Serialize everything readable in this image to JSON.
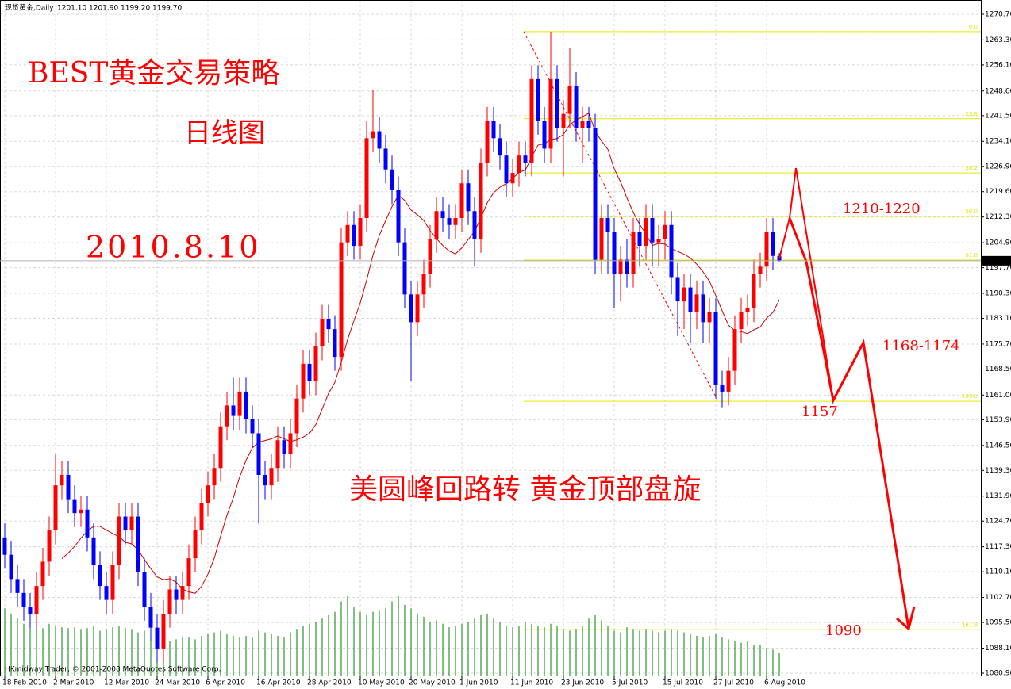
{
  "chart_data": {
    "type": "candlestick",
    "header": {
      "symbol": "现货黄金,Daily",
      "quote": [
        "1201.10",
        "1201.90",
        "1199.20",
        "1199.70"
      ]
    },
    "footer": "HKmidway Trader, © 2001-2008 MetaQuotes Software Corp.",
    "price_label": "1199.70",
    "annotations": [
      "BEST黄金交易策略",
      "日线图",
      "2010.8.10",
      "美圆峰回路转  黄金顶部盘旋",
      "1210-1220",
      "1168-1174",
      "1157",
      "1090"
    ],
    "categories": [
      "18 Feb 2010",
      null,
      null,
      null,
      null,
      null,
      null,
      null,
      "2 Mar 2010",
      null,
      null,
      null,
      null,
      null,
      null,
      null,
      "12 Mar 2010",
      null,
      null,
      null,
      null,
      null,
      null,
      null,
      "24 Mar 2010",
      null,
      null,
      null,
      null,
      null,
      null,
      null,
      "6 Apr 2010",
      null,
      null,
      null,
      null,
      null,
      null,
      null,
      "16 Apr 2010",
      null,
      null,
      null,
      null,
      null,
      null,
      null,
      "28 Apr 2010",
      null,
      null,
      null,
      null,
      null,
      null,
      null,
      "10 May 2010",
      null,
      null,
      null,
      null,
      null,
      null,
      null,
      "20 May 2010",
      null,
      null,
      null,
      null,
      null,
      null,
      null,
      "1 Jun 2010",
      null,
      null,
      null,
      null,
      null,
      null,
      null,
      "11 Jun 2010",
      null,
      null,
      null,
      null,
      null,
      null,
      null,
      "23 Jun 2010",
      null,
      null,
      null,
      null,
      null,
      null,
      null,
      "5 Jul 2010",
      null,
      null,
      null,
      null,
      null,
      null,
      null,
      "15 Jul 2010",
      null,
      null,
      null,
      null,
      null,
      null,
      null,
      "27 Jul 2010",
      null,
      null,
      null,
      null,
      null,
      null,
      null,
      "6 Aug 2010",
      null,
      null
    ],
    "open": [
      1120,
      1115,
      1108,
      1104,
      1100,
      1098,
      1106,
      1113,
      1122,
      1135,
      1138,
      1131,
      1127,
      1128,
      1120,
      1112,
      1106,
      1102,
      1112,
      1126,
      1122,
      1126,
      1110,
      1100,
      1094,
      1088,
      1098,
      1105,
      1102,
      1106,
      1114,
      1122,
      1130,
      1135,
      1140,
      1152,
      1158,
      1155,
      1162,
      1154,
      1150,
      1138,
      1135,
      1140,
      1148,
      1144,
      1150,
      1160,
      1170,
      1165,
      1175,
      1183,
      1180,
      1172,
      1205,
      1210,
      1204,
      1212,
      1235,
      1237,
      1232,
      1226,
      1220,
      1205,
      1190,
      1182,
      1190,
      1196,
      1206,
      1214,
      1212,
      1210,
      1212,
      1222,
      1214,
      1206,
      1228,
      1240,
      1235,
      1230,
      1222,
      1225,
      1230,
      1228,
      1252,
      1240,
      1232,
      1252,
      1238,
      1242,
      1250,
      1238,
      1240,
      1238,
      1200,
      1212,
      1208,
      1196,
      1200,
      1196,
      1208,
      1204,
      1212,
      1205,
      1206,
      1210,
      1195,
      1188,
      1192,
      1185,
      1190,
      1182,
      1185,
      1164,
      1162,
      1168,
      1180,
      1185,
      1186,
      1196,
      1198,
      1208,
      1201.1
    ],
    "high": [
      1124,
      1119,
      1112,
      1108,
      1104,
      1110,
      1117,
      1126,
      1144,
      1142,
      1142,
      1135,
      1132,
      1132,
      1124,
      1116,
      1110,
      1116,
      1130,
      1130,
      1130,
      1130,
      1114,
      1104,
      1098,
      1102,
      1109,
      1109,
      1110,
      1118,
      1126,
      1134,
      1139,
      1144,
      1156,
      1162,
      1166,
      1166,
      1166,
      1158,
      1154,
      1142,
      1144,
      1152,
      1152,
      1154,
      1164,
      1174,
      1174,
      1179,
      1187,
      1187,
      1184,
      1209,
      1214,
      1214,
      1216,
      1240,
      1249,
      1241,
      1236,
      1230,
      1224,
      1209,
      1194,
      1194,
      1200,
      1210,
      1218,
      1218,
      1216,
      1216,
      1226,
      1226,
      1218,
      1232,
      1244,
      1244,
      1239,
      1234,
      1229,
      1234,
      1234,
      1256,
      1256,
      1244,
      1265.7,
      1256,
      1246,
      1261,
      1254,
      1244,
      1244,
      1242,
      1216,
      1216,
      1212,
      1204,
      1206,
      1212,
      1212,
      1216,
      1216,
      1210,
      1214,
      1214,
      1199,
      1196,
      1196,
      1194,
      1194,
      1189,
      1189,
      1168,
      1172,
      1184,
      1189,
      1190,
      1200,
      1202,
      1212,
      1212,
      1201.9
    ],
    "low": [
      1111,
      1104,
      1100,
      1096,
      1094,
      1094,
      1102,
      1109,
      1118,
      1131,
      1127,
      1123,
      1123,
      1116,
      1108,
      1102,
      1098,
      1098,
      1108,
      1118,
      1118,
      1106,
      1096,
      1090,
      1084,
      1084,
      1094,
      1098,
      1098,
      1102,
      1110,
      1118,
      1126,
      1131,
      1136,
      1148,
      1151,
      1151,
      1150,
      1146,
      1124,
      1131,
      1131,
      1136,
      1140,
      1140,
      1146,
      1156,
      1161,
      1161,
      1171,
      1176,
      1168,
      1168,
      1201,
      1200,
      1200,
      1208,
      1231,
      1228,
      1222,
      1216,
      1201,
      1186,
      1165,
      1178,
      1186,
      1192,
      1202,
      1208,
      1206,
      1206,
      1208,
      1210,
      1198,
      1202,
      1224,
      1231,
      1226,
      1218,
      1218,
      1221,
      1224,
      1224,
      1236,
      1228,
      1228,
      1234,
      1224,
      1238,
      1234,
      1228,
      1234,
      1196,
      1196,
      1196,
      1186,
      1188,
      1192,
      1192,
      1198,
      1200,
      1198,
      1198,
      1200,
      1190,
      1178,
      1180,
      1176,
      1180,
      1176,
      1176,
      1160,
      1157.5,
      1158,
      1164,
      1176,
      1181,
      1182,
      1192,
      1194,
      1197,
      1199.2
    ],
    "close": [
      1115,
      1108,
      1104,
      1100,
      1098,
      1106,
      1113,
      1122,
      1135,
      1138,
      1131,
      1127,
      1128,
      1120,
      1112,
      1106,
      1102,
      1112,
      1126,
      1122,
      1126,
      1110,
      1100,
      1094,
      1088,
      1098,
      1105,
      1102,
      1106,
      1114,
      1122,
      1130,
      1135,
      1140,
      1152,
      1158,
      1155,
      1162,
      1154,
      1150,
      1138,
      1135,
      1140,
      1148,
      1144,
      1150,
      1160,
      1170,
      1165,
      1175,
      1183,
      1180,
      1172,
      1205,
      1210,
      1204,
      1212,
      1235,
      1237,
      1232,
      1226,
      1220,
      1205,
      1190,
      1182,
      1190,
      1196,
      1206,
      1214,
      1212,
      1210,
      1212,
      1222,
      1214,
      1206,
      1228,
      1240,
      1235,
      1230,
      1222,
      1225,
      1230,
      1228,
      1252,
      1240,
      1232,
      1252,
      1238,
      1242,
      1250,
      1238,
      1240,
      1238,
      1200,
      1212,
      1208,
      1196,
      1200,
      1196,
      1208,
      1204,
      1212,
      1205,
      1206,
      1210,
      1195,
      1188,
      1192,
      1185,
      1190,
      1182,
      1185,
      1164,
      1162,
      1168,
      1180,
      1185,
      1186,
      1196,
      1198,
      1208,
      1201.1,
      1199.7
    ],
    "volume": [
      78,
      72,
      66,
      60,
      64,
      58,
      55,
      60,
      58,
      56,
      55,
      56,
      54,
      55,
      58,
      52,
      54,
      56,
      57,
      55,
      54,
      50,
      52,
      50,
      46,
      44,
      40,
      42,
      44,
      44,
      42,
      46,
      48,
      50,
      52,
      48,
      46,
      44,
      46,
      44,
      52,
      50,
      48,
      46,
      44,
      50,
      54,
      58,
      60,
      62,
      66,
      70,
      74,
      86,
      92,
      80,
      74,
      70,
      74,
      76,
      78,
      86,
      92,
      82,
      78,
      72,
      68,
      62,
      64,
      60,
      56,
      58,
      60,
      62,
      66,
      70,
      72,
      66,
      62,
      58,
      56,
      58,
      62,
      60,
      58,
      56,
      60,
      58,
      54,
      52,
      54,
      58,
      66,
      70,
      64,
      58,
      52,
      50,
      56,
      54,
      52,
      54,
      52,
      50,
      52,
      54,
      52,
      50,
      48,
      46,
      44,
      46,
      48,
      44,
      42,
      40,
      38,
      40,
      36,
      36,
      32,
      30,
      26
    ],
    "up_color": "#ff0000",
    "down_color": "#0000ff",
    "volume_color": "#008000",
    "fib_color": "#e6e600",
    "ma_color": "#cc0000",
    "fibonacci": [
      {
        "label": "0.0",
        "value": 1265.7
      },
      {
        "label": "23.6",
        "value": 1240.6
      },
      {
        "label": "38.2",
        "value": 1225.0
      },
      {
        "label": "50.0",
        "value": 1212.5
      },
      {
        "label": "61.8",
        "value": 1199.9
      },
      {
        "label": "100.0",
        "value": 1159.2
      },
      {
        "label": "161.8",
        "value": 1093.4
      }
    ],
    "ylim": [
      1080.9,
      1270.7
    ],
    "yticks": [
      {
        "value": 1270.7,
        "label": "1270.70"
      },
      {
        "value": 1263.3,
        "label": "1263.30"
      },
      {
        "value": 1256.1,
        "label": "1256.10"
      },
      {
        "value": 1248.6,
        "label": "1248.60"
      },
      {
        "value": 1241.5,
        "label": "1241.50"
      },
      {
        "value": 1234.1,
        "label": "1234.10"
      },
      {
        "value": 1226.9,
        "label": "1226.90"
      },
      {
        "value": 1219.6,
        "label": "1219.60"
      },
      {
        "value": 1212.3,
        "label": "1212.30"
      },
      {
        "value": 1204.9,
        "label": "1204.90"
      },
      {
        "value": 1197.7,
        "label": "1197.70"
      },
      {
        "value": 1190.3,
        "label": "1190.30"
      },
      {
        "value": 1183.1,
        "label": "1183.10"
      },
      {
        "value": 1175.7,
        "label": "1175.70"
      },
      {
        "value": 1168.5,
        "label": "1168.50"
      },
      {
        "value": 1161.0,
        "label": "1161.00"
      },
      {
        "value": 1153.9,
        "label": "1153.90"
      },
      {
        "value": 1146.5,
        "label": "1146.50"
      },
      {
        "value": 1139.3,
        "label": "1139.30"
      },
      {
        "value": 1131.9,
        "label": "1131.90"
      },
      {
        "value": 1124.7,
        "label": "1124.70"
      },
      {
        "value": 1117.3,
        "label": "1117.30"
      },
      {
        "value": 1110.1,
        "label": "1110.10"
      },
      {
        "value": 1102.7,
        "label": "1102.70"
      },
      {
        "value": 1095.5,
        "label": "1095.50"
      },
      {
        "value": 1088.1,
        "label": "1088.10"
      },
      {
        "value": 1080.9,
        "label": "1080.90"
      }
    ],
    "grid": true
  }
}
